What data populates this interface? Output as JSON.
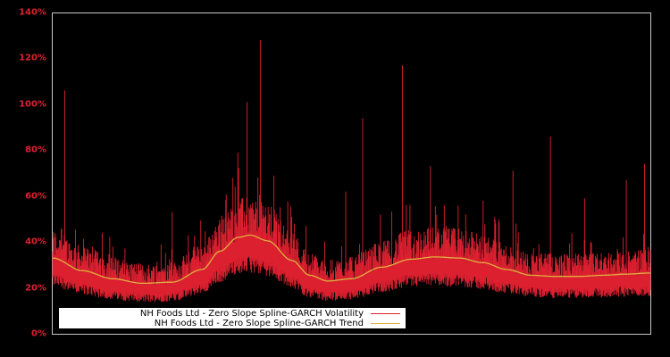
{
  "chart_data": {
    "type": "line",
    "title": "",
    "xlabel": "",
    "ylabel": "",
    "ylim": [
      0,
      140
    ],
    "y_ticks": [
      "0%",
      "20%",
      "40%",
      "60%",
      "80%",
      "100%",
      "120%",
      "140%"
    ],
    "grid": false,
    "legend_position": "lower-left inside",
    "background": "#000000",
    "axis_color": "#c8c8c8",
    "tick_label_color": "#e02030",
    "series": [
      {
        "name": "NH Foods Ltd - Zero Slope Spline-GARCH Volatility",
        "color": "#dd2030",
        "description": "Noisy daily volatility, mostly 18-45%, with spikes",
        "notable_peaks": [
          {
            "x_frac": 0.02,
            "value": 106
          },
          {
            "x_frac": 0.2,
            "value": 53
          },
          {
            "x_frac": 0.31,
            "value": 79
          },
          {
            "x_frac": 0.325,
            "value": 101
          },
          {
            "x_frac": 0.348,
            "value": 128
          },
          {
            "x_frac": 0.4,
            "value": 51
          },
          {
            "x_frac": 0.49,
            "value": 62
          },
          {
            "x_frac": 0.519,
            "value": 94
          },
          {
            "x_frac": 0.585,
            "value": 117
          },
          {
            "x_frac": 0.632,
            "value": 73
          },
          {
            "x_frac": 0.72,
            "value": 58
          },
          {
            "x_frac": 0.77,
            "value": 71
          },
          {
            "x_frac": 0.833,
            "value": 86
          },
          {
            "x_frac": 0.89,
            "value": 59
          },
          {
            "x_frac": 0.96,
            "value": 67
          },
          {
            "x_frac": 0.99,
            "value": 74
          }
        ]
      },
      {
        "name": "NH Foods Ltd - Zero Slope Spline-GARCH Trend",
        "color": "#e0b040",
        "points": [
          [
            0.0,
            33
          ],
          [
            0.05,
            27.5
          ],
          [
            0.1,
            24
          ],
          [
            0.15,
            22
          ],
          [
            0.2,
            22.5
          ],
          [
            0.25,
            28
          ],
          [
            0.28,
            36
          ],
          [
            0.31,
            42
          ],
          [
            0.33,
            43
          ],
          [
            0.36,
            40.5
          ],
          [
            0.4,
            32
          ],
          [
            0.43,
            25.5
          ],
          [
            0.46,
            23
          ],
          [
            0.5,
            24
          ],
          [
            0.55,
            29
          ],
          [
            0.6,
            32.5
          ],
          [
            0.64,
            33.5
          ],
          [
            0.68,
            33
          ],
          [
            0.72,
            31
          ],
          [
            0.76,
            28
          ],
          [
            0.8,
            25.5
          ],
          [
            0.84,
            25
          ],
          [
            0.88,
            25
          ],
          [
            0.92,
            25.5
          ],
          [
            0.96,
            26
          ],
          [
            1.0,
            26.5
          ]
        ]
      }
    ]
  },
  "legend": {
    "items": [
      {
        "label": "NH Foods Ltd - Zero Slope Spline-GARCH Volatility",
        "color": "#dd2030"
      },
      {
        "label": "NH Foods Ltd - Zero Slope Spline-GARCH Trend",
        "color": "#e0b040"
      }
    ]
  }
}
